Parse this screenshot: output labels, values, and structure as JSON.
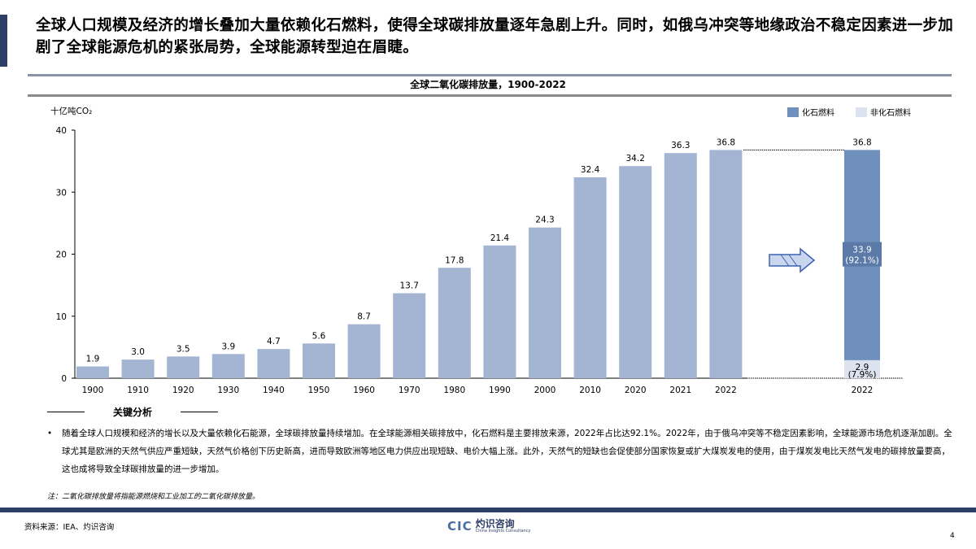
{
  "headline": "全球人口规模及经济的增长叠加大量依赖化石燃料，使得全球碳排放量逐年急剧上升。同时，如俄乌冲突等地缘政治不稳定因素进一步加剧了全球能源危机的紧张局势，全球能源转型迫在眉睫。",
  "chart_data": {
    "type": "bar",
    "title": "全球二氧化碳排放量，1900-2022",
    "ylabel": "十亿吨CO₂",
    "ylim": [
      0,
      40
    ],
    "yticks": [
      0,
      10,
      20,
      30,
      40
    ],
    "categories": [
      "1900",
      "1910",
      "1920",
      "1930",
      "1940",
      "1950",
      "1960",
      "1970",
      "1980",
      "1990",
      "2000",
      "2010",
      "2020",
      "2021",
      "2022"
    ],
    "values": [
      1.9,
      3.0,
      3.5,
      3.9,
      4.7,
      5.6,
      8.7,
      13.7,
      17.8,
      21.4,
      24.3,
      32.4,
      34.2,
      36.3,
      36.8
    ],
    "breakdown": {
      "category": "2022",
      "total": 36.8,
      "series": [
        {
          "name": "化石燃料",
          "value": 33.9,
          "label": "33.9",
          "pct": "(92.1%)",
          "color": "#6f8fbd"
        },
        {
          "name": "非化石燃料",
          "value": 2.9,
          "label": "2.9",
          "pct": "(7.9%)",
          "color": "#dce3ee"
        }
      ]
    },
    "legend": [
      "化石燃料",
      "非化石燃料"
    ],
    "legend_position": "top-right",
    "bar_color": "#a3b5d3"
  },
  "analysis": {
    "title": "关键分析",
    "bullet": "随着全球人口规模和经济的增长以及大量依赖化石能源，全球碳排放量持续增加。在全球能源相关碳排放中，化石燃料是主要排放来源，2022年占比达92.1%。2022年，由于俄乌冲突等不稳定因素影响，全球能源市场危机逐渐加剧。全球尤其是欧洲的天然气供应严重短缺，天然气价格创下历史新高，进而导致欧洲等地区电力供应出现短缺、电价大幅上涨。此外，天然气的短缺也会促使部分国家恢复或扩大煤炭发电的使用，由于煤炭发电比天然气发电的碳排放量要高，这也成将导致全球碳排放量的进一步增加。",
    "note": "注：二氧化碳排放量将指能源燃烧和工业加工的二氧化碳排放量。"
  },
  "footer": {
    "source": "资料来源：IEA、灼识咨询",
    "logo_cic": "CIC",
    "logo_cn": "灼识咨询",
    "logo_en": "China Insights Consultancy",
    "page": "4"
  }
}
